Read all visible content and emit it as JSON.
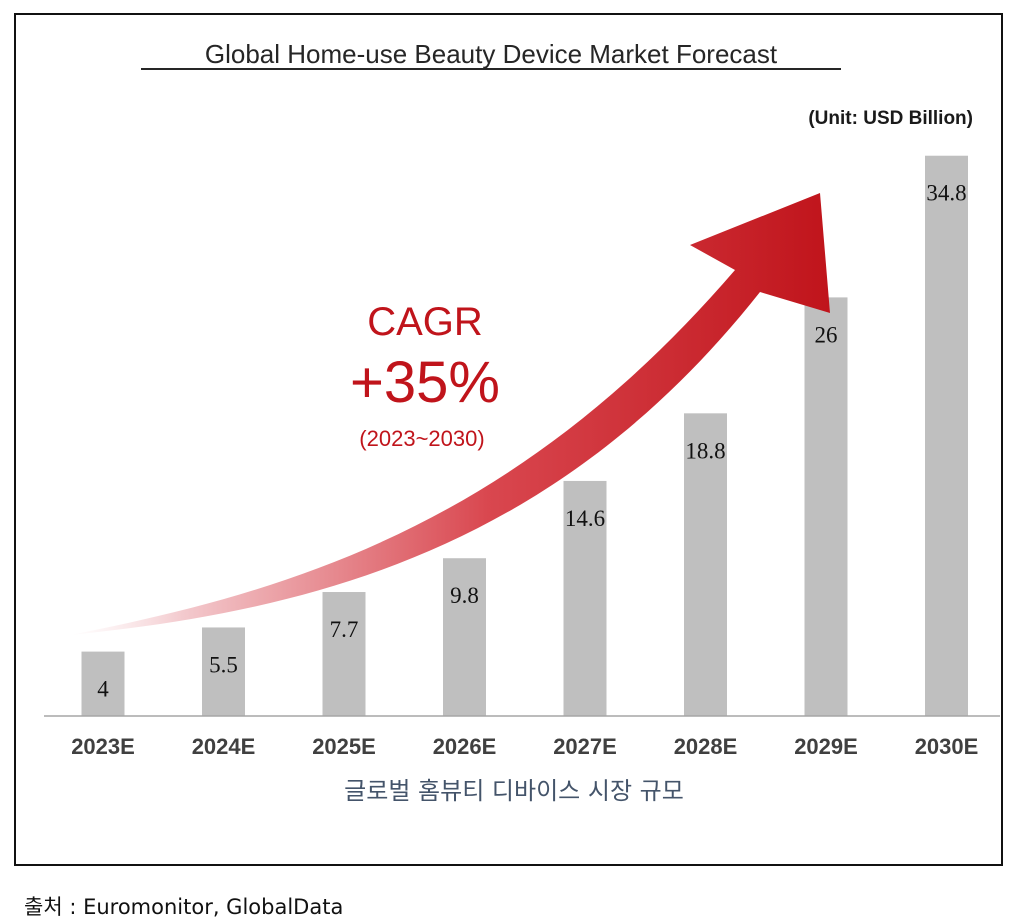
{
  "chart_data": {
    "type": "bar",
    "title": "Global Home-use Beauty Device Market Forecast",
    "unit_label": "(Unit: USD Billion)",
    "categories": [
      "2023E",
      "2024E",
      "2025E",
      "2026E",
      "2027E",
      "2028E",
      "2029E",
      "2030E"
    ],
    "values": [
      4,
      5.5,
      7.7,
      9.8,
      14.6,
      18.8,
      26,
      34.8
    ],
    "value_labels": [
      "4",
      "5.5",
      "7.7",
      "9.8",
      "14.6",
      "18.8",
      "26",
      "34.8"
    ],
    "xlabel": "글로벌 홈뷰티 디바이스 시장 규모",
    "ylabel": "",
    "ylim": [
      0,
      36
    ],
    "grid": false,
    "legend": "none",
    "annotation": {
      "line1": "CAGR",
      "line2": "+35%",
      "line3": "(2023~2030)"
    },
    "colors": {
      "bar": "#bfbfbf",
      "annotation": "#c0141b",
      "arrow_start": "#f3c9cd",
      "arrow_end": "#c0141b",
      "axis": "#a6a6a6",
      "tick_label": "#404040",
      "xlabel": "#44546a"
    }
  },
  "source": "출처 : Euromonitor, GlobalData"
}
